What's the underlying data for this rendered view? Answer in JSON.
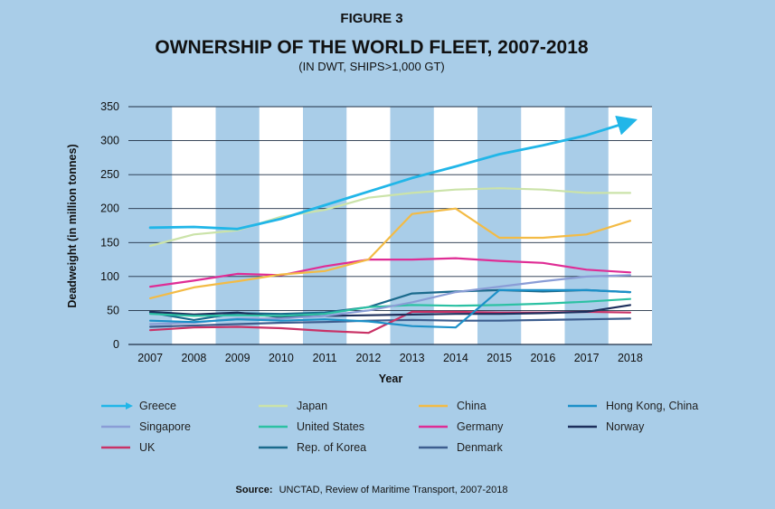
{
  "chart_data": {
    "type": "line",
    "figure_label": "FIGURE 3",
    "title": "OWNERSHIP OF THE WORLD FLEET, 2007-2018",
    "subtitle": "(IN DWT, SHIPS>1,000 GT)",
    "xlabel": "Year",
    "ylabel": "Deadweight (in million tonnes)",
    "ylim": [
      0,
      350
    ],
    "yticks": [
      "0",
      "50",
      "100",
      "150",
      "200",
      "250",
      "300",
      "350"
    ],
    "ytick_values": [
      0,
      50,
      100,
      150,
      200,
      250,
      300,
      350
    ],
    "x": [
      "2007",
      "2008",
      "2009",
      "2010",
      "2011",
      "2012",
      "2013",
      "2014",
      "2015",
      "2016",
      "2017",
      "2018"
    ],
    "grid": "horizontal gridlines with alternating white column bands",
    "legend_position": "bottom",
    "series": [
      {
        "name": "Greece",
        "color": "#21b6e8",
        "values": [
          172,
          173,
          170,
          185,
          205,
          225,
          245,
          262,
          280,
          293,
          308,
          328
        ]
      },
      {
        "name": "Japan",
        "color": "#cbe3a9",
        "values": [
          145,
          162,
          168,
          188,
          198,
          216,
          223,
          228,
          230,
          228,
          223,
          223
        ]
      },
      {
        "name": "China",
        "color": "#f3bb45",
        "values": [
          68,
          84,
          93,
          103,
          108,
          125,
          192,
          200,
          157,
          157,
          162,
          182
        ]
      },
      {
        "name": "Hong Kong, China",
        "color": "#1c90c8",
        "values": [
          35,
          33,
          37,
          35,
          37,
          34,
          27,
          25,
          80,
          80,
          80,
          77
        ]
      },
      {
        "name": "Singapore",
        "color": "#8a9dd6",
        "values": [
          30,
          32,
          38,
          38,
          42,
          50,
          62,
          77,
          85,
          93,
          100,
          102
        ]
      },
      {
        "name": "United States",
        "color": "#2cc1a3",
        "values": [
          45,
          42,
          43,
          42,
          45,
          55,
          58,
          57,
          58,
          60,
          63,
          67
        ]
      },
      {
        "name": "Germany",
        "color": "#df2d95",
        "values": [
          85,
          94,
          104,
          102,
          115,
          125,
          125,
          127,
          123,
          120,
          110,
          106
        ]
      },
      {
        "name": "Norway",
        "color": "#1d2f5c",
        "values": [
          48,
          44,
          47,
          40,
          42,
          43,
          44,
          45,
          45,
          46,
          48,
          58
        ]
      },
      {
        "name": "UK",
        "color": "#c93266",
        "values": [
          21,
          25,
          26,
          24,
          20,
          17,
          48,
          48,
          47,
          47,
          48,
          47
        ]
      },
      {
        "name": "Rep. of Korea",
        "color": "#1b6a8c",
        "values": [
          47,
          36,
          46,
          45,
          47,
          55,
          75,
          78,
          80,
          78,
          80,
          77
        ]
      },
      {
        "name": "Denmark",
        "color": "#3d5e8f",
        "values": [
          26,
          28,
          30,
          32,
          33,
          35,
          36,
          35,
          35,
          36,
          37,
          38
        ]
      }
    ],
    "source_label": "Source:",
    "source_text": "UNCTAD, Review of Maritime Transport, 2007-2018"
  }
}
